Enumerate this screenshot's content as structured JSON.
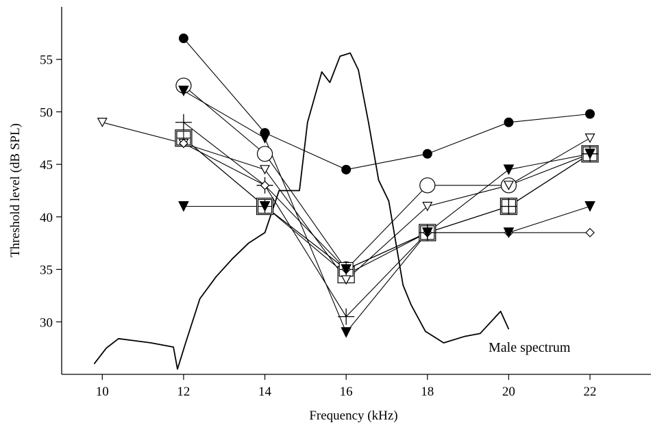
{
  "chart_data": {
    "type": "line",
    "title": "",
    "xlabel": "Frequency (kHz)",
    "ylabel": "Threshold level (dB SPL)",
    "xlim": [
      9,
      23.5
    ],
    "ylim": [
      25,
      60
    ],
    "x_ticks": [
      10,
      12,
      14,
      16,
      18,
      20,
      22
    ],
    "y_ticks": [
      30,
      35,
      40,
      45,
      50,
      55
    ],
    "x_tick_labels": [
      "10",
      "12",
      "14",
      "16",
      "18",
      "20",
      "22"
    ],
    "y_tick_labels": [
      "30",
      "35",
      "40",
      "45",
      "50",
      "55"
    ],
    "grid": false,
    "legend": "none",
    "annotations": [
      {
        "text": "Male spectrum",
        "x": 20.7,
        "y": 27.6
      }
    ],
    "series": [
      {
        "marker": "filled-circle",
        "x": [
          12,
          14,
          16,
          18,
          20,
          22
        ],
        "y": [
          57,
          48,
          44.5,
          46,
          49,
          49.8
        ]
      },
      {
        "marker": "open-circle",
        "x": [
          12,
          14,
          16,
          18,
          20,
          22
        ],
        "y": [
          52.5,
          46,
          35,
          43,
          43,
          46
        ]
      },
      {
        "marker": "filled-triangle-down",
        "x": [
          12,
          14,
          16,
          18,
          20,
          22
        ],
        "y": [
          52,
          47.5,
          29,
          38.5,
          44.5,
          46
        ]
      },
      {
        "marker": "open-triangle-down",
        "x": [
          10,
          12,
          14,
          16,
          18,
          20,
          22
        ],
        "y": [
          49,
          47,
          44.5,
          34,
          41,
          43,
          47.5
        ]
      },
      {
        "marker": "plus",
        "x": [
          12,
          14,
          16,
          18,
          20,
          22
        ],
        "y": [
          49,
          43,
          30.5,
          38.5,
          41,
          46
        ]
      },
      {
        "marker": "open-square",
        "x": [
          12,
          14,
          16,
          18,
          20,
          22
        ],
        "y": [
          47.5,
          41,
          34.5,
          38.5,
          41,
          46
        ]
      },
      {
        "marker": "open-diamond",
        "x": [
          12,
          14,
          16,
          18,
          20,
          22
        ],
        "y": [
          47,
          43,
          35,
          38.5,
          38.5,
          38.5
        ]
      },
      {
        "marker": "filled-triangle-down",
        "x": [
          12,
          14,
          16,
          18,
          20,
          22
        ],
        "y": [
          41,
          41,
          35,
          38.5,
          38.5,
          41
        ]
      },
      {
        "marker": "open-square-plus",
        "x": [
          12,
          14,
          16,
          18,
          20,
          22
        ],
        "y": [
          47.5,
          41,
          35,
          38.5,
          41,
          46
        ]
      }
    ],
    "spectrum": {
      "name": "Male spectrum",
      "x": [
        9.8,
        10.1,
        10.4,
        10.8,
        11.2,
        11.75,
        11.85,
        12.05,
        12.2,
        12.4,
        12.8,
        13.2,
        13.6,
        14.0,
        14.35,
        14.6,
        14.85,
        15.05,
        15.4,
        15.6,
        15.85,
        16.1,
        16.3,
        16.55,
        16.8,
        17.05,
        17.4,
        17.6,
        17.95,
        18.4,
        18.9,
        19.3,
        19.8,
        20.0
      ],
      "y": [
        26,
        27.5,
        28.4,
        28.2,
        28.0,
        27.6,
        25.5,
        28,
        29.8,
        32.2,
        34.3,
        36.0,
        37.5,
        38.5,
        42.5,
        42.5,
        42.5,
        49,
        53.8,
        52.8,
        55.3,
        55.6,
        54,
        49,
        43.5,
        41.5,
        33.5,
        31.6,
        29.1,
        28.0,
        28.6,
        28.9,
        31,
        29.3
      ]
    }
  }
}
